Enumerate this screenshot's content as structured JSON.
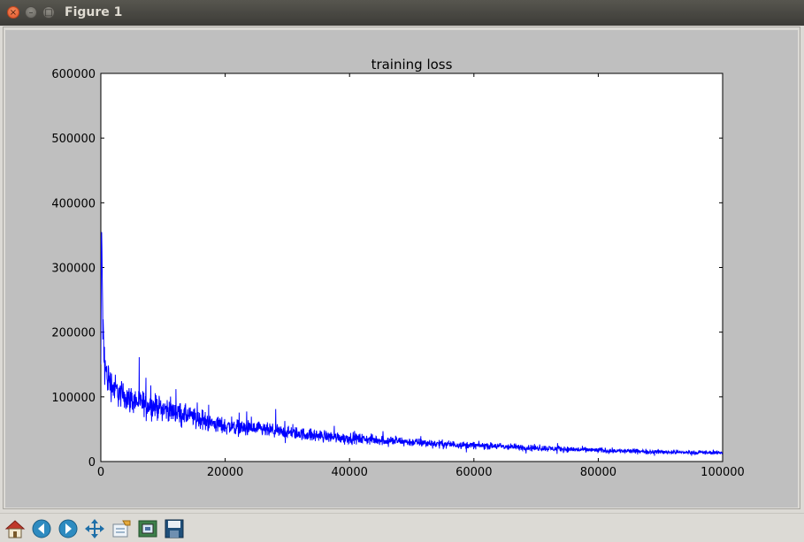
{
  "window": {
    "title": "Figure 1",
    "close_glyph": "×",
    "minimize_glyph": "–",
    "maximize_glyph": "□"
  },
  "toolbar": {
    "buttons": [
      {
        "name": "home-icon"
      },
      {
        "name": "back-icon"
      },
      {
        "name": "forward-icon"
      },
      {
        "name": "pan-icon"
      },
      {
        "name": "configure-subplots-icon"
      },
      {
        "name": "zoom-rect-icon"
      },
      {
        "name": "save-icon"
      }
    ]
  },
  "colors": {
    "line": "#0000ff",
    "figure_bg": "#bfbfbf",
    "axes_bg": "#ffffff"
  },
  "chart_data": {
    "type": "line",
    "title": "training loss",
    "xlabel": "",
    "ylabel": "",
    "xlim": [
      0,
      100000
    ],
    "ylim": [
      0,
      600000
    ],
    "xticks": [
      0,
      20000,
      40000,
      60000,
      80000,
      100000
    ],
    "yticks": [
      0,
      100000,
      200000,
      300000,
      400000,
      500000,
      600000
    ],
    "xtick_labels": [
      "0",
      "20000",
      "40000",
      "60000",
      "80000",
      "100000"
    ],
    "ytick_labels": [
      "0",
      "100000",
      "200000",
      "300000",
      "400000",
      "500000",
      "600000"
    ],
    "grid": false,
    "series": [
      {
        "x": [
          0,
          100,
          200,
          300,
          500,
          1000,
          2000,
          3000,
          5000,
          7500,
          10000,
          12500,
          15000,
          17500,
          20000,
          25000,
          30000,
          35000,
          40000,
          45000,
          50000,
          55000,
          60000,
          65000,
          70000,
          75000,
          80000,
          85000,
          90000,
          95000,
          100000
        ],
        "y": [
          150000,
          370000,
          305000,
          220000,
          160000,
          130000,
          115000,
          105000,
          95000,
          88000,
          82000,
          75000,
          68000,
          60000,
          55000,
          50000,
          45000,
          40000,
          36000,
          33000,
          30000,
          27000,
          25000,
          23000,
          21000,
          19000,
          17500,
          16000,
          15000,
          14000,
          13500
        ],
        "spread": [
          20000,
          20000,
          20000,
          50000,
          45000,
          40000,
          35000,
          32000,
          30000,
          28000,
          26000,
          24000,
          22000,
          20000,
          19000,
          17000,
          15000,
          14000,
          12500,
          11000,
          10000,
          9000,
          8000,
          7500,
          7000,
          6500,
          6000,
          5500,
          5000,
          4500,
          4000
        ]
      }
    ]
  }
}
